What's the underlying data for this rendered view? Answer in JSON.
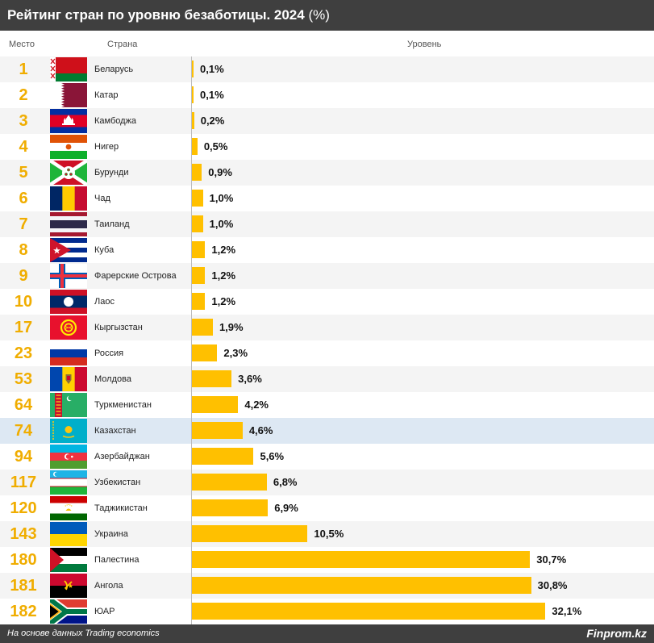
{
  "header": {
    "title": "Рейтинг стран по уровню безаботицы. 2024",
    "unit": "(%)"
  },
  "columns": {
    "rank": "Место",
    "country": "Страна",
    "level": "Уровень"
  },
  "footer": {
    "source": "На основе данных Trading economics",
    "brand": "Finprom.kz"
  },
  "colors": {
    "bar": "#ffc000",
    "rank": "#f0ad00",
    "highlight": "#dde8f3",
    "header": "#3f3f3f"
  },
  "chart_data": {
    "type": "bar",
    "orientation": "horizontal",
    "title": "Рейтинг стран по уровню безаботицы. 2024 (%)",
    "ylabel": "Уровень",
    "xlim": [
      0,
      35
    ],
    "rows": [
      {
        "rank": "1",
        "country": "Беларусь",
        "value": 0.1,
        "label": "0,1%",
        "flag": "belarus-flag"
      },
      {
        "rank": "2",
        "country": "Катар",
        "value": 0.1,
        "label": "0,1%",
        "flag": "qatar-flag"
      },
      {
        "rank": "3",
        "country": "Камбоджа",
        "value": 0.2,
        "label": "0,2%",
        "flag": "cambodia-flag"
      },
      {
        "rank": "4",
        "country": "Нигер",
        "value": 0.5,
        "label": "0,5%",
        "flag": "niger-flag"
      },
      {
        "rank": "5",
        "country": "Бурунди",
        "value": 0.9,
        "label": "0,9%",
        "flag": "burundi-flag"
      },
      {
        "rank": "6",
        "country": "Чад",
        "value": 1.0,
        "label": "1,0%",
        "flag": "chad-flag"
      },
      {
        "rank": "7",
        "country": "Таиланд",
        "value": 1.0,
        "label": "1,0%",
        "flag": "thailand-flag"
      },
      {
        "rank": "8",
        "country": "Куба",
        "value": 1.2,
        "label": "1,2%",
        "flag": "cuba-flag"
      },
      {
        "rank": "9",
        "country": "Фарерские Острова",
        "value": 1.2,
        "label": "1,2%",
        "flag": "faroe-islands-flag"
      },
      {
        "rank": "10",
        "country": "Лаос",
        "value": 1.2,
        "label": "1,2%",
        "flag": "laos-flag"
      },
      {
        "rank": "17",
        "country": "Кыргызстан",
        "value": 1.9,
        "label": "1,9%",
        "flag": "kyrgyzstan-flag"
      },
      {
        "rank": "23",
        "country": "Россия",
        "value": 2.3,
        "label": "2,3%",
        "flag": "russia-flag"
      },
      {
        "rank": "53",
        "country": "Молдова",
        "value": 3.6,
        "label": "3,6%",
        "flag": "moldova-flag"
      },
      {
        "rank": "64",
        "country": "Туркменистан",
        "value": 4.2,
        "label": "4,2%",
        "flag": "turkmenistan-flag"
      },
      {
        "rank": "74",
        "country": "Казахстан",
        "value": 4.6,
        "label": "4,6%",
        "flag": "kazakhstan-flag",
        "highlight": true
      },
      {
        "rank": "94",
        "country": "Азербайджан",
        "value": 5.6,
        "label": "5,6%",
        "flag": "azerbaijan-flag"
      },
      {
        "rank": "117",
        "country": "Узбекистан",
        "value": 6.8,
        "label": "6,8%",
        "flag": "uzbekistan-flag"
      },
      {
        "rank": "120",
        "country": "Таджикистан",
        "value": 6.9,
        "label": "6,9%",
        "flag": "tajikistan-flag"
      },
      {
        "rank": "143",
        "country": "Украина",
        "value": 10.5,
        "label": "10,5%",
        "flag": "ukraine-flag"
      },
      {
        "rank": "180",
        "country": "Палестина",
        "value": 30.7,
        "label": "30,7%",
        "flag": "palestine-flag"
      },
      {
        "rank": "181",
        "country": "Ангола",
        "value": 30.8,
        "label": "30,8%",
        "flag": "angola-flag"
      },
      {
        "rank": "182",
        "country": "ЮАР",
        "value": 32.1,
        "label": "32,1%",
        "flag": "south-africa-flag"
      }
    ]
  }
}
